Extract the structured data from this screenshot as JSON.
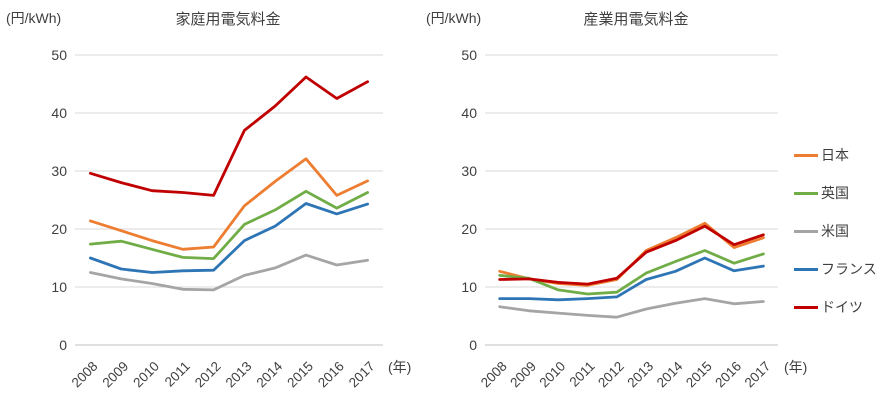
{
  "page": {
    "background": "#ffffff",
    "text_color": "#404040",
    "grid_color": "#d9d9d9"
  },
  "unit_label": "(円/kWh)",
  "year_label": "(年)",
  "legend": {
    "position": "right",
    "items": [
      {
        "label": "日本",
        "color": "#ED7D31"
      },
      {
        "label": "英国",
        "color": "#70AD47"
      },
      {
        "label": "米国",
        "color": "#A5A5A5"
      },
      {
        "label": "フランス",
        "color": "#2E75B6"
      },
      {
        "label": "ドイツ",
        "color": "#C00000"
      }
    ]
  },
  "chart_data": [
    {
      "type": "line",
      "title": "家庭用電気料金",
      "ylabel": "(円/kWh)",
      "xlabel": "(年)",
      "categories": [
        "2008",
        "2009",
        "2010",
        "2011",
        "2012",
        "2013",
        "2014",
        "2015",
        "2016",
        "2017"
      ],
      "ylim": [
        0,
        50
      ],
      "yticks": [
        0,
        10,
        20,
        30,
        40,
        50
      ],
      "grid": true,
      "legend_visible": false,
      "series": [
        {
          "name": "日本",
          "color": "#ED7D31",
          "values": [
            21.4,
            19.7,
            18.0,
            16.5,
            16.9,
            24.0,
            28.2,
            32.1,
            25.8,
            28.3
          ]
        },
        {
          "name": "英国",
          "color": "#70AD47",
          "values": [
            17.4,
            17.9,
            16.5,
            15.1,
            14.9,
            20.8,
            23.3,
            26.5,
            23.6,
            26.3
          ]
        },
        {
          "name": "米国",
          "color": "#A5A5A5",
          "values": [
            12.5,
            11.4,
            10.6,
            9.6,
            9.5,
            12.0,
            13.3,
            15.5,
            13.8,
            14.6
          ]
        },
        {
          "name": "フランス",
          "color": "#2E75B6",
          "values": [
            15.0,
            13.1,
            12.5,
            12.8,
            12.9,
            18.0,
            20.5,
            24.4,
            22.6,
            24.3
          ]
        },
        {
          "name": "ドイツ",
          "color": "#C00000",
          "values": [
            29.6,
            28.0,
            26.6,
            26.3,
            25.8,
            37.0,
            41.2,
            46.2,
            42.5,
            45.4
          ]
        }
      ]
    },
    {
      "type": "line",
      "title": "産業用電気料金",
      "ylabel": "(円/kWh)",
      "xlabel": "(年)",
      "categories": [
        "2008",
        "2009",
        "2010",
        "2011",
        "2012",
        "2013",
        "2014",
        "2015",
        "2016",
        "2017"
      ],
      "ylim": [
        0,
        50
      ],
      "yticks": [
        0,
        10,
        20,
        30,
        40,
        50
      ],
      "grid": true,
      "legend_visible": true,
      "series": [
        {
          "name": "日本",
          "color": "#ED7D31",
          "values": [
            12.7,
            11.4,
            10.6,
            10.3,
            11.3,
            16.3,
            18.5,
            21.0,
            16.8,
            18.5
          ]
        },
        {
          "name": "英国",
          "color": "#70AD47",
          "values": [
            12.0,
            11.5,
            9.5,
            8.8,
            9.1,
            12.4,
            14.4,
            16.3,
            14.1,
            15.7
          ]
        },
        {
          "name": "米国",
          "color": "#A5A5A5",
          "values": [
            6.6,
            5.9,
            5.5,
            5.1,
            4.8,
            6.2,
            7.2,
            8.0,
            7.1,
            7.5
          ]
        },
        {
          "name": "フランス",
          "color": "#2E75B6",
          "values": [
            8.0,
            8.0,
            7.8,
            8.0,
            8.3,
            11.3,
            12.7,
            15.0,
            12.8,
            13.6
          ]
        },
        {
          "name": "ドイツ",
          "color": "#C00000",
          "values": [
            11.3,
            11.4,
            10.8,
            10.5,
            11.5,
            16.0,
            18.0,
            20.5,
            17.3,
            19.0
          ]
        }
      ]
    }
  ]
}
